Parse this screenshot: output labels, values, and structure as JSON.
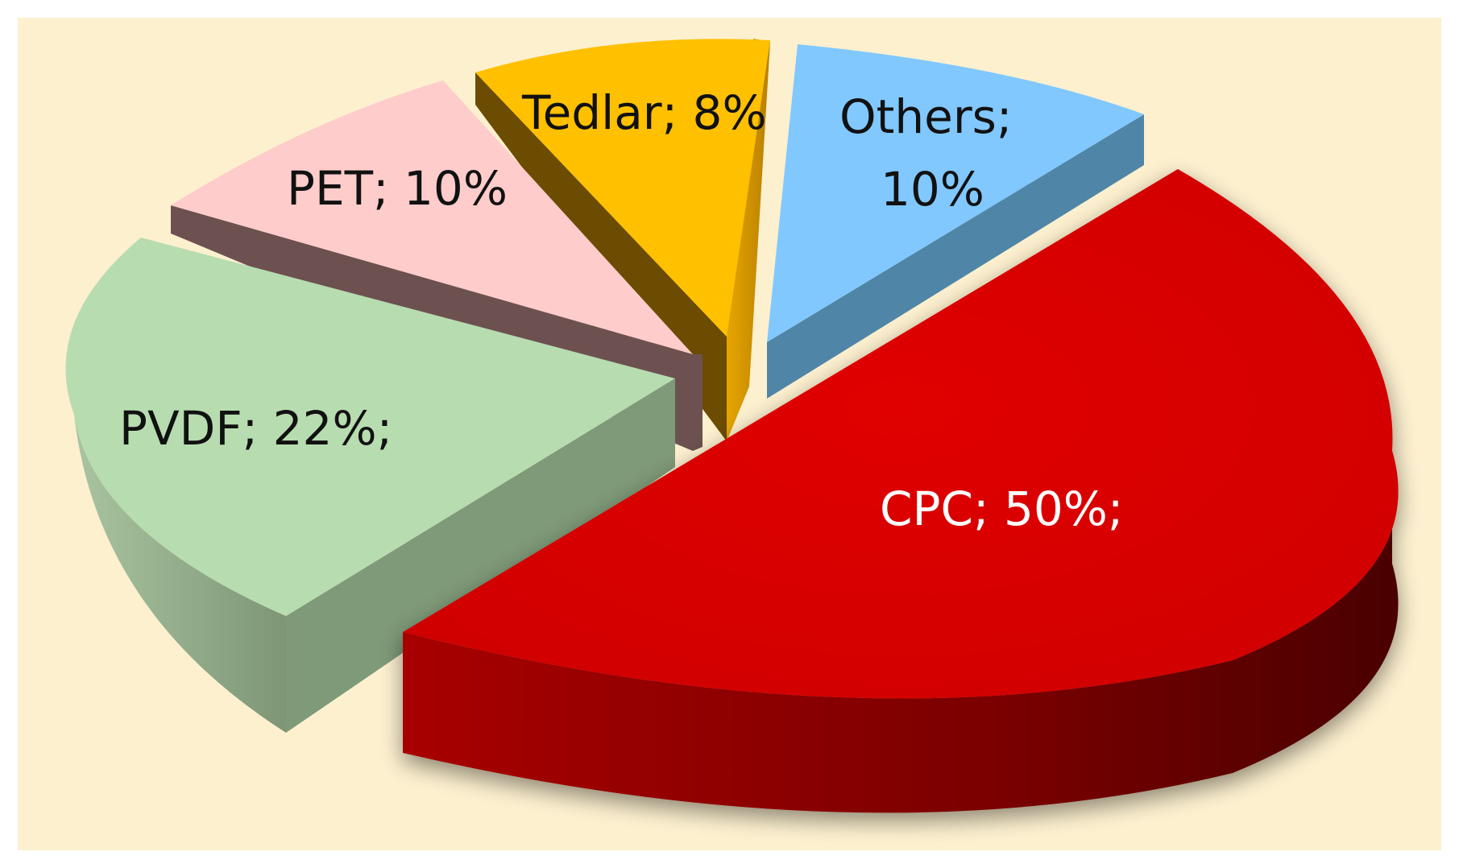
{
  "chart_data": {
    "type": "pie",
    "style": "3d-exploded",
    "title": "",
    "background_color": "#fdf0cf",
    "slices": [
      {
        "label": "CPC; 50%;",
        "category": "CPC",
        "value": 50,
        "top_color": "#d70000",
        "side_color": "#8b0000",
        "label_color": "#ffffff"
      },
      {
        "label": "PVDF; 22%;",
        "category": "PVDF",
        "value": 22,
        "top_color": "#b7dcb0",
        "side_color": "#7f9a78",
        "label_color": "#111111"
      },
      {
        "label": "PET; 10%",
        "category": "PET",
        "value": 10,
        "top_color": "#ffcccc",
        "side_color": "#6d5151",
        "label_color": "#111111"
      },
      {
        "label": "Tedlar; 8%",
        "category": "Tedlar",
        "value": 8,
        "top_color": "#ffc000",
        "side_color": "#6b4c00",
        "label_color": "#111111"
      },
      {
        "label": [
          "Others;",
          "10%"
        ],
        "category": "Others",
        "value": 10,
        "top_color": "#80c8ff",
        "side_color": "#4f86a8",
        "label_color": "#111111"
      }
    ]
  }
}
